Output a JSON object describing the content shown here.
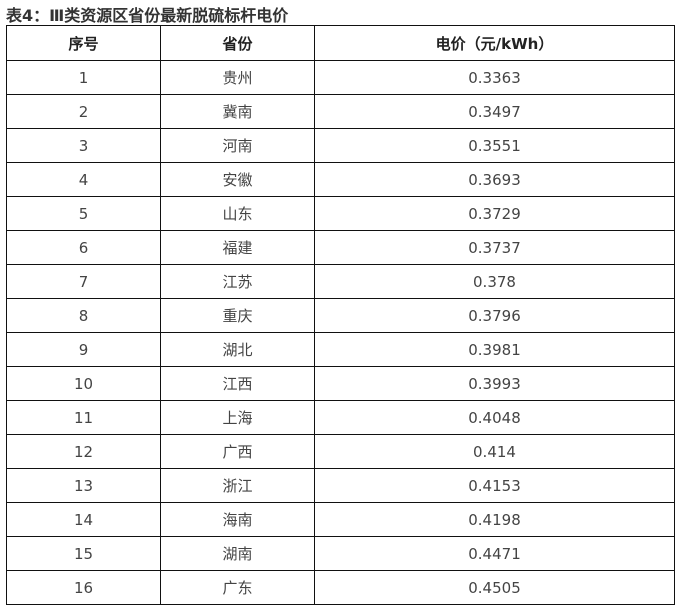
{
  "title": "表4：Ⅲ类资源区省份最新脱硫标杆电价",
  "headers": [
    "序号",
    "省份",
    "电价（元/kWh）"
  ],
  "rows": [
    [
      "1",
      "贵州",
      "0.3363"
    ],
    [
      "2",
      "冀南",
      "0.3497"
    ],
    [
      "3",
      "河南",
      "0.3551"
    ],
    [
      "4",
      "安徽",
      "0.3693"
    ],
    [
      "5",
      "山东",
      "0.3729"
    ],
    [
      "6",
      "福建",
      "0.3737"
    ],
    [
      "7",
      "江苏",
      "0.378"
    ],
    [
      "8",
      "重庆",
      "0.3796"
    ],
    [
      "9",
      "湖北",
      "0.3981"
    ],
    [
      "10",
      "江西",
      "0.3993"
    ],
    [
      "11",
      "上海",
      "0.4048"
    ],
    [
      "12",
      "广西",
      "0.414"
    ],
    [
      "13",
      "浙江",
      "0.4153"
    ],
    [
      "14",
      "海南",
      "0.4198"
    ],
    [
      "15",
      "湖南",
      "0.4471"
    ],
    [
      "16",
      "广东",
      "0.4505"
    ]
  ]
}
